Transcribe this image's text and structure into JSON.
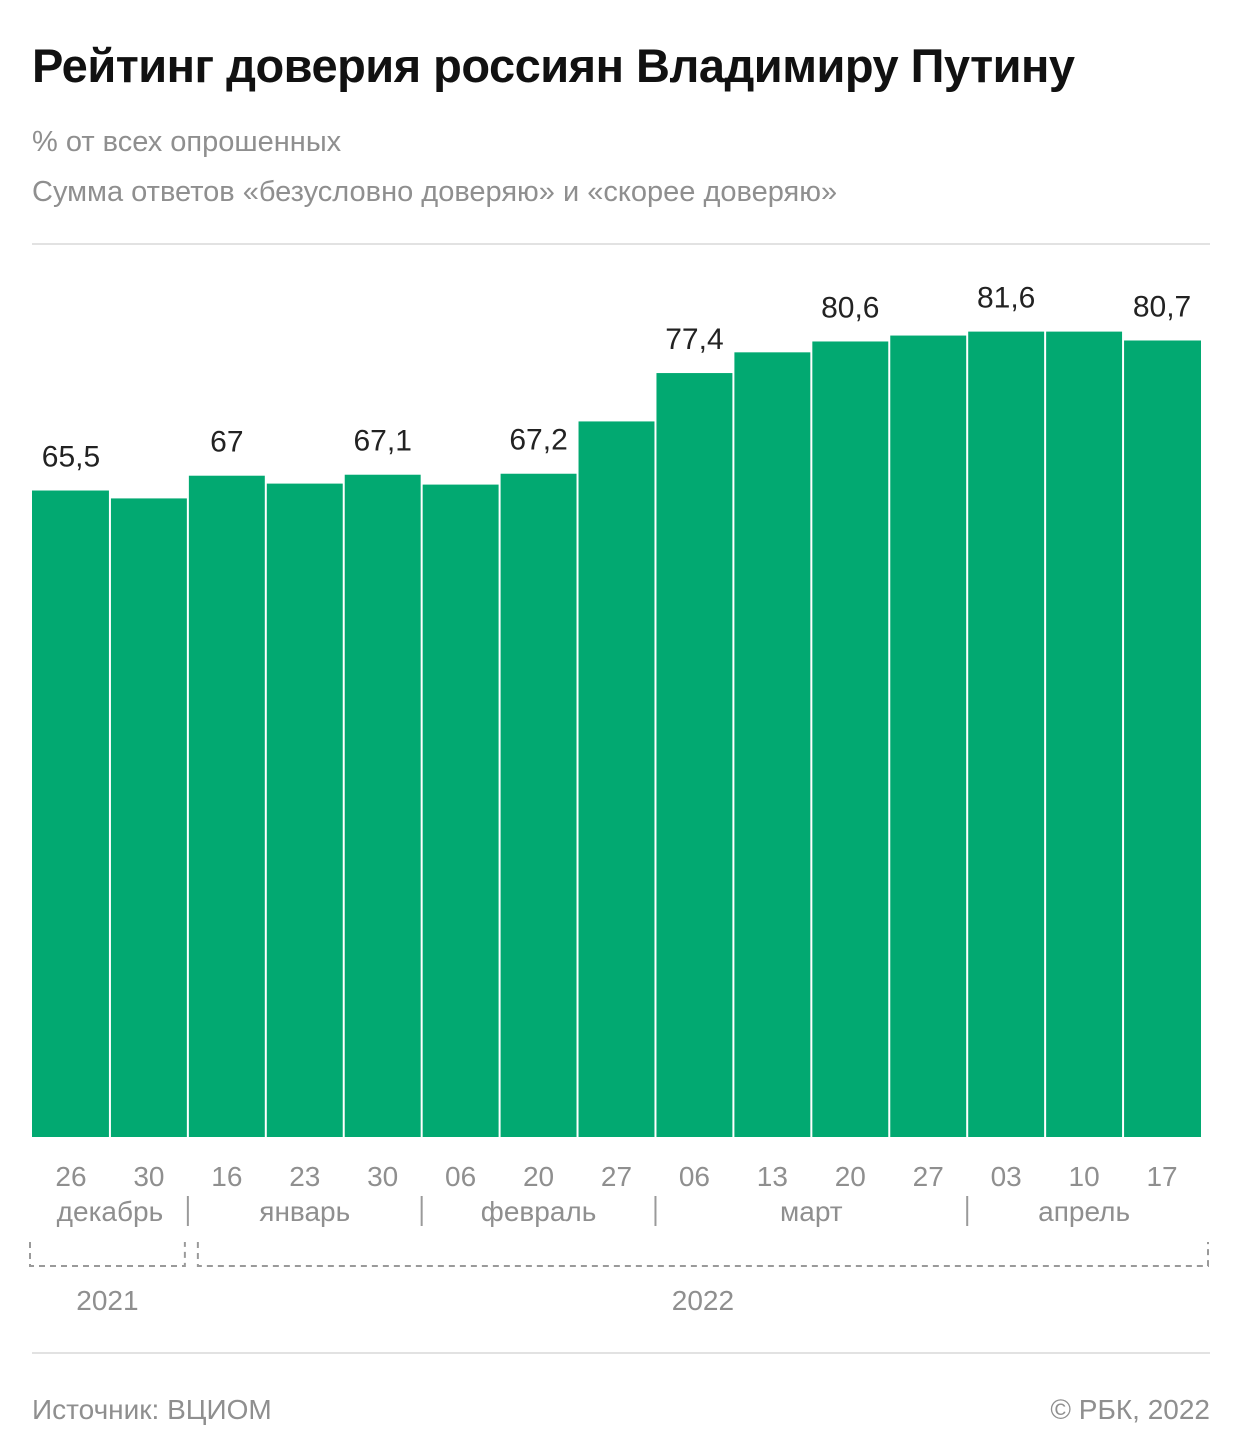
{
  "header": {
    "title": "Рейтинг доверия россиян Владимиру Путину",
    "subtitle_1": "% от всех опрошенных",
    "subtitle_2": "Сумма ответов «безусловно доверяю» и «скорее доверяю»"
  },
  "chart_data": {
    "type": "bar",
    "categories": [
      "26",
      "30",
      "16",
      "23",
      "30",
      "06",
      "20",
      "27",
      "06",
      "13",
      "20",
      "27",
      "03",
      "10",
      "17"
    ],
    "values": [
      65.5,
      64.7,
      67,
      66.2,
      67.1,
      66.1,
      67.2,
      72.5,
      77.4,
      79.5,
      80.6,
      81.2,
      81.6,
      81.6,
      80.7
    ],
    "labels": [
      "65,5",
      "",
      "67",
      "",
      "67,1",
      "",
      "67,2",
      "",
      "77,4",
      "",
      "80,6",
      "",
      "81,6",
      "",
      "80,7"
    ],
    "ylim": [
      0,
      100
    ],
    "bar_color": "#02a971",
    "months": [
      {
        "label": "декабрь",
        "start": 0,
        "end": 1
      },
      {
        "label": "январь",
        "start": 2,
        "end": 4
      },
      {
        "label": "февраль",
        "start": 5,
        "end": 7
      },
      {
        "label": "март",
        "start": 8,
        "end": 11
      },
      {
        "label": "апрель",
        "start": 12,
        "end": 14
      }
    ],
    "years": [
      {
        "label": "2021",
        "start": 0,
        "end": 1
      },
      {
        "label": "2022",
        "start": 2,
        "end": 14
      }
    ]
  },
  "footer": {
    "source": "Источник: ВЦИОМ",
    "copyright": "© РБК, 2022"
  }
}
